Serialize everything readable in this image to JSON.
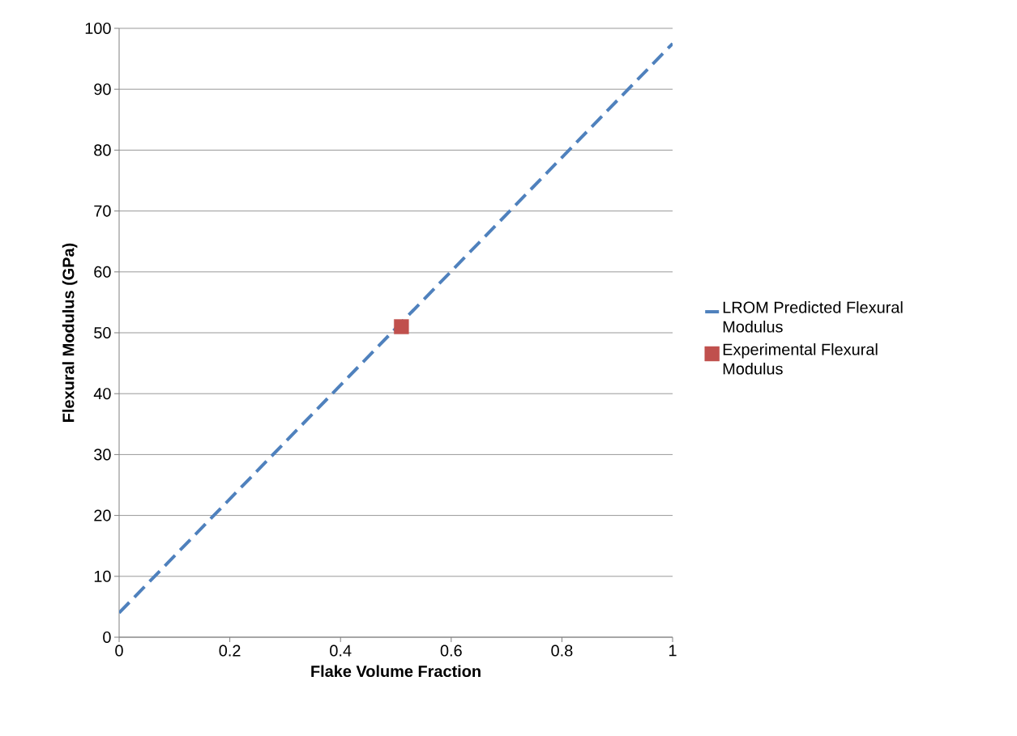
{
  "chart_data": {
    "type": "line",
    "xlabel": "Flake Volume Fraction",
    "ylabel": "Flexural Modulus (GPa)",
    "xlim": [
      0,
      1
    ],
    "xticks": [
      0,
      0.2,
      0.4,
      0.6,
      0.8,
      1
    ],
    "ylim": [
      0,
      100
    ],
    "yticks": [
      0,
      10,
      20,
      30,
      40,
      50,
      60,
      70,
      80,
      90,
      100
    ],
    "grid": "y",
    "legend": "right",
    "series": [
      {
        "name": "LROM Predicted Flexural Modulus",
        "color": "#4f81bd",
        "x": [
          0,
          1
        ],
        "values": [
          4,
          97.5
        ],
        "line_style": "dashed",
        "marker": "none"
      },
      {
        "name": "Experimental Flexural Modulus",
        "type": "scatter",
        "color": "#c0504d",
        "x": [
          0.51
        ],
        "values": [
          51
        ],
        "marker": "square"
      }
    ]
  }
}
